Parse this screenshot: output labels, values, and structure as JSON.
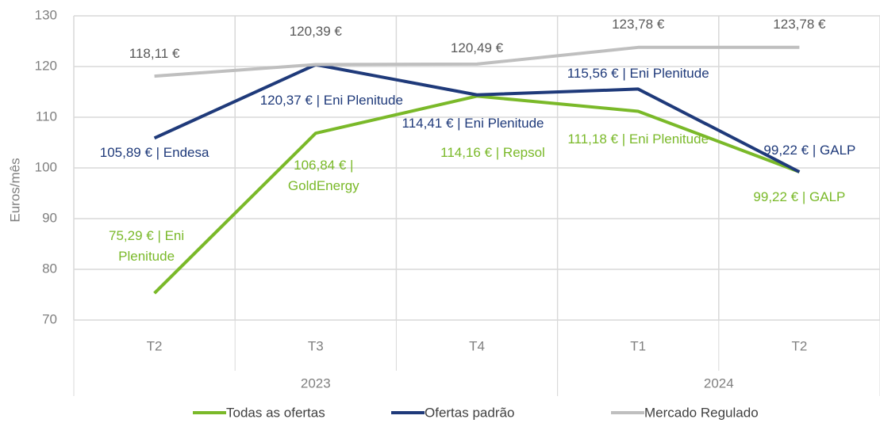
{
  "chart_data": {
    "type": "line",
    "y_label": "Euros/mês",
    "groups": [
      {
        "name": "2023",
        "categories": [
          "T2",
          "T3",
          "T4"
        ]
      },
      {
        "name": "2024",
        "categories": [
          "T1",
          "T2"
        ]
      }
    ],
    "series": [
      {
        "name": "Todas as ofertas",
        "color": "#7ab929",
        "values": [
          75.29,
          106.84,
          114.16,
          111.18,
          99.22
        ],
        "value_labels": [
          "75,29 € | Eni Plenitude",
          "106,84 € | GoldEnergy",
          "114,16 € | Repsol",
          "111,18 € | Eni Plenitude",
          "99,22 € | GALP"
        ]
      },
      {
        "name": "Ofertas padrão",
        "color": "#1f3a7a",
        "values": [
          105.89,
          120.37,
          114.41,
          115.56,
          99.22
        ],
        "value_labels": [
          "105,89 € | Endesa",
          "120,37 € | Eni Plenitude",
          "114,41 € | Eni Plenitude",
          "115,56 € | Eni Plenitude",
          "99,22 € | GALP"
        ]
      },
      {
        "name": "Mercado Regulado",
        "color": "#bfbfbf",
        "values": [
          118.11,
          120.39,
          120.49,
          123.78,
          123.78
        ],
        "value_labels": [
          "118,11 €",
          "120,39 €",
          "120,49 €",
          "123,78 €",
          "123,78 €"
        ]
      }
    ],
    "ylim": [
      70,
      130
    ],
    "yticks": [
      70,
      80,
      90,
      100,
      110,
      120,
      130
    ],
    "grid": true,
    "legend": "bottom"
  }
}
